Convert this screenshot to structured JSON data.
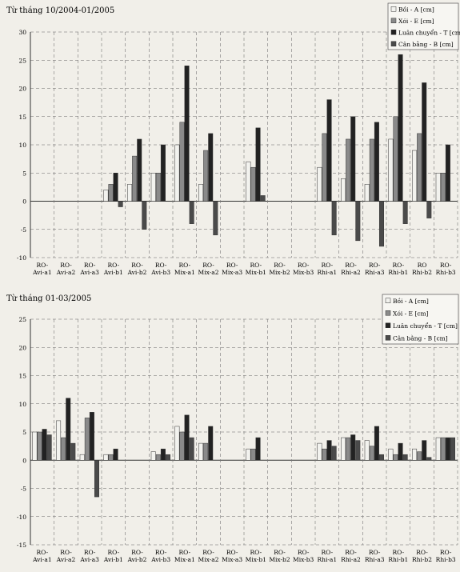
{
  "chart_data": [
    {
      "type": "bar",
      "title": "Từ tháng 10/2004-01/2005",
      "xlabel": "",
      "ylabel": "",
      "ylim": [
        -10,
        30
      ],
      "yticks": [
        -10,
        -5,
        0,
        5,
        10,
        15,
        20,
        25,
        30
      ],
      "grid": true,
      "legend_position": "top-right",
      "categories": [
        [
          "RO-",
          "Avi-a1"
        ],
        [
          "RO-",
          "Avi-a2"
        ],
        [
          "RO-",
          "Avi-a3"
        ],
        [
          "RO-",
          "Avi-b1"
        ],
        [
          "RO-",
          "Avi-b2"
        ],
        [
          "RO-",
          "Avi-b3"
        ],
        [
          "RO-",
          "Mix-a1"
        ],
        [
          "RO-",
          "Mix-a2"
        ],
        [
          "RO-",
          "Mix-a3"
        ],
        [
          "RO-",
          "Mix-b1"
        ],
        [
          "RO-",
          "Mix-b2"
        ],
        [
          "RO-",
          "Mix-b3"
        ],
        [
          "RO-",
          "Rhi-a1"
        ],
        [
          "RO-",
          "Rhi-a2"
        ],
        [
          "RO-",
          "Rhi-a3"
        ],
        [
          "RO-",
          "Rhi-b1"
        ],
        [
          "RO",
          "Rhi-b2"
        ],
        [
          "RO-",
          "Rhi-b3"
        ]
      ],
      "series": [
        {
          "name": "Bồi - A [cm]",
          "color": "#f2f2ee",
          "values": [
            0,
            0,
            0,
            2,
            3,
            5,
            10,
            3,
            0,
            7,
            0,
            0,
            6,
            4,
            3,
            11,
            9,
            5
          ]
        },
        {
          "name": "Xói - E [cm]",
          "color": "#8a8a8a",
          "values": [
            0,
            0,
            0,
            3,
            8,
            5,
            14,
            9,
            0,
            6,
            0,
            0,
            12,
            11,
            11,
            15,
            12,
            5
          ]
        },
        {
          "name": "Luân chuyển - T [cm]",
          "color": "#222222",
          "values": [
            0,
            0,
            0,
            5,
            11,
            10,
            24,
            12,
            0,
            13,
            0,
            0,
            18,
            15,
            14,
            26,
            21,
            10
          ]
        },
        {
          "name": "Cân bằng - B [cm]",
          "color": "#4a4a4a",
          "values": [
            0,
            0,
            0,
            -1,
            -5,
            0,
            -4,
            -6,
            0,
            1,
            0,
            0,
            -6,
            -7,
            -8,
            -4,
            -3,
            0
          ]
        }
      ]
    },
    {
      "type": "bar",
      "title": "Từ tháng 01-03/2005",
      "xlabel": "",
      "ylabel": "",
      "ylim": [
        -15,
        25
      ],
      "yticks": [
        -15,
        -10,
        -5,
        0,
        5,
        10,
        15,
        20,
        25
      ],
      "grid": true,
      "legend_position": "top-right",
      "categories": [
        [
          "RO-",
          "Avi-a1"
        ],
        [
          "RO-",
          "Avi-a2"
        ],
        [
          "RO-",
          "Avi-a3"
        ],
        [
          "RO-",
          "Avi-b1"
        ],
        [
          "RO-",
          "Avi-b2"
        ],
        [
          "RO-",
          "Avi-b3"
        ],
        [
          "RO-",
          "Mix-a1"
        ],
        [
          "RO-",
          "Mix-a2"
        ],
        [
          "RO-",
          "Mix-a3"
        ],
        [
          "RO-",
          "Mix-b1"
        ],
        [
          "RO-",
          "Mix-b2"
        ],
        [
          "RO-",
          "Mix-b3"
        ],
        [
          "RO-",
          "Rhi-a1"
        ],
        [
          "RO-",
          "Rhi-a2"
        ],
        [
          "RO-",
          "Rhi-a3"
        ],
        [
          "RO-",
          "Rhi-b1"
        ],
        [
          "RO-",
          "Rhi-b2"
        ],
        [
          "RO-",
          "Rhi-b3"
        ]
      ],
      "series": [
        {
          "name": "Bồi - A [cm]",
          "color": "#f2f2ee",
          "values": [
            5,
            7,
            1,
            1,
            0,
            1.5,
            6,
            3,
            0,
            2,
            0,
            0,
            3,
            4,
            3.5,
            2,
            2,
            4
          ]
        },
        {
          "name": "Xói - E [cm]",
          "color": "#8a8a8a",
          "values": [
            5,
            4,
            7.5,
            1,
            0,
            1,
            5,
            3,
            0,
            2,
            0,
            0,
            2,
            4,
            2.5,
            1,
            1.5,
            4
          ]
        },
        {
          "name": "Luân chuyển - T [cm]",
          "color": "#222222",
          "values": [
            5.5,
            11,
            8.5,
            2,
            0,
            2,
            8,
            6,
            0,
            4,
            0,
            0,
            3.5,
            4.5,
            6,
            3,
            3.5,
            4
          ]
        },
        {
          "name": "Cân bằng - B [cm]",
          "color": "#4a4a4a",
          "values": [
            4.5,
            3,
            -6.5,
            0,
            0,
            1,
            4,
            0,
            0,
            0,
            0,
            0,
            2.5,
            3.5,
            1,
            1,
            0.5,
            4
          ]
        }
      ]
    }
  ]
}
